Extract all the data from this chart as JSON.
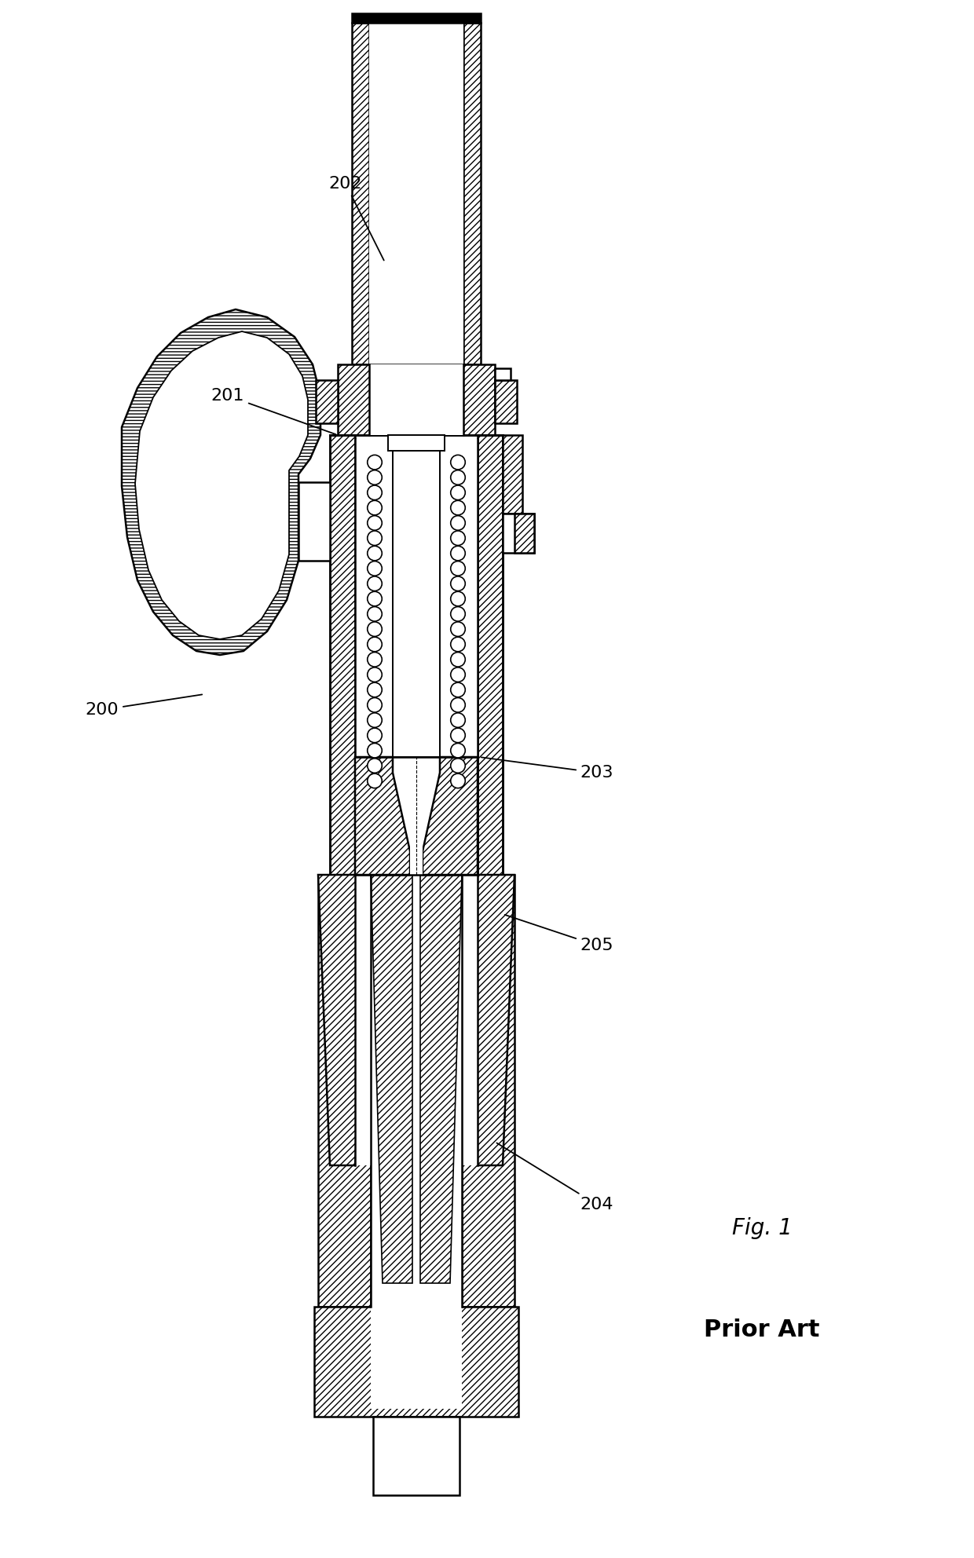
{
  "bg_color": "#ffffff",
  "line_color": "#000000",
  "fig_label": "Fig. 1",
  "fig_sublabel": "Prior Art",
  "font_size_label": 16,
  "font_size_fig": 20,
  "font_size_fig_bold": 22
}
